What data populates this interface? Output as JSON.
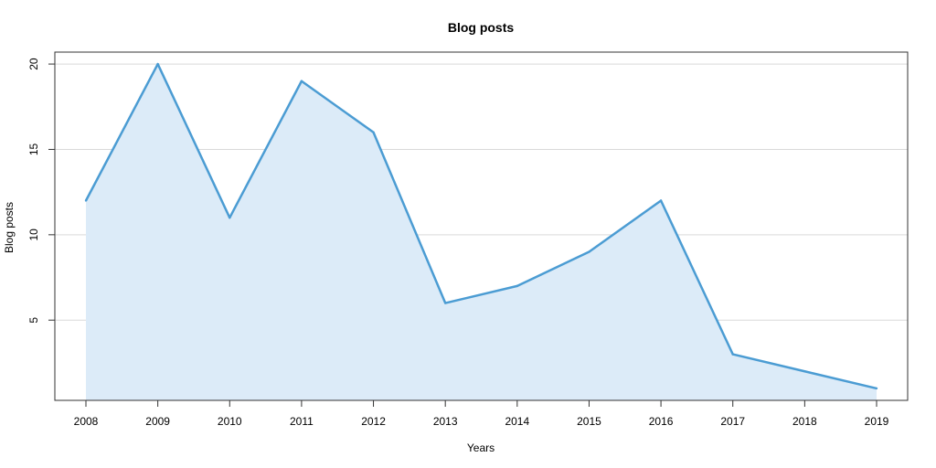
{
  "chart_data": {
    "type": "area",
    "title": "Blog posts",
    "xlabel": "Years",
    "ylabel": "Blog posts",
    "x": [
      "2008",
      "2009",
      "2010",
      "2011",
      "2012",
      "2013",
      "2014",
      "2015",
      "2016",
      "2017",
      "2018",
      "2019"
    ],
    "series": [
      {
        "values": [
          12,
          20,
          11,
          19,
          16,
          6,
          7,
          9,
          12,
          3,
          2,
          1
        ]
      }
    ],
    "ylim": [
      0.3,
      20.7
    ],
    "yticks": [
      5,
      10,
      15,
      20
    ],
    "grid": "horizontal",
    "legend": "none",
    "colors": {
      "line": "#4b9cd3",
      "fill": "#dcebf8"
    }
  }
}
